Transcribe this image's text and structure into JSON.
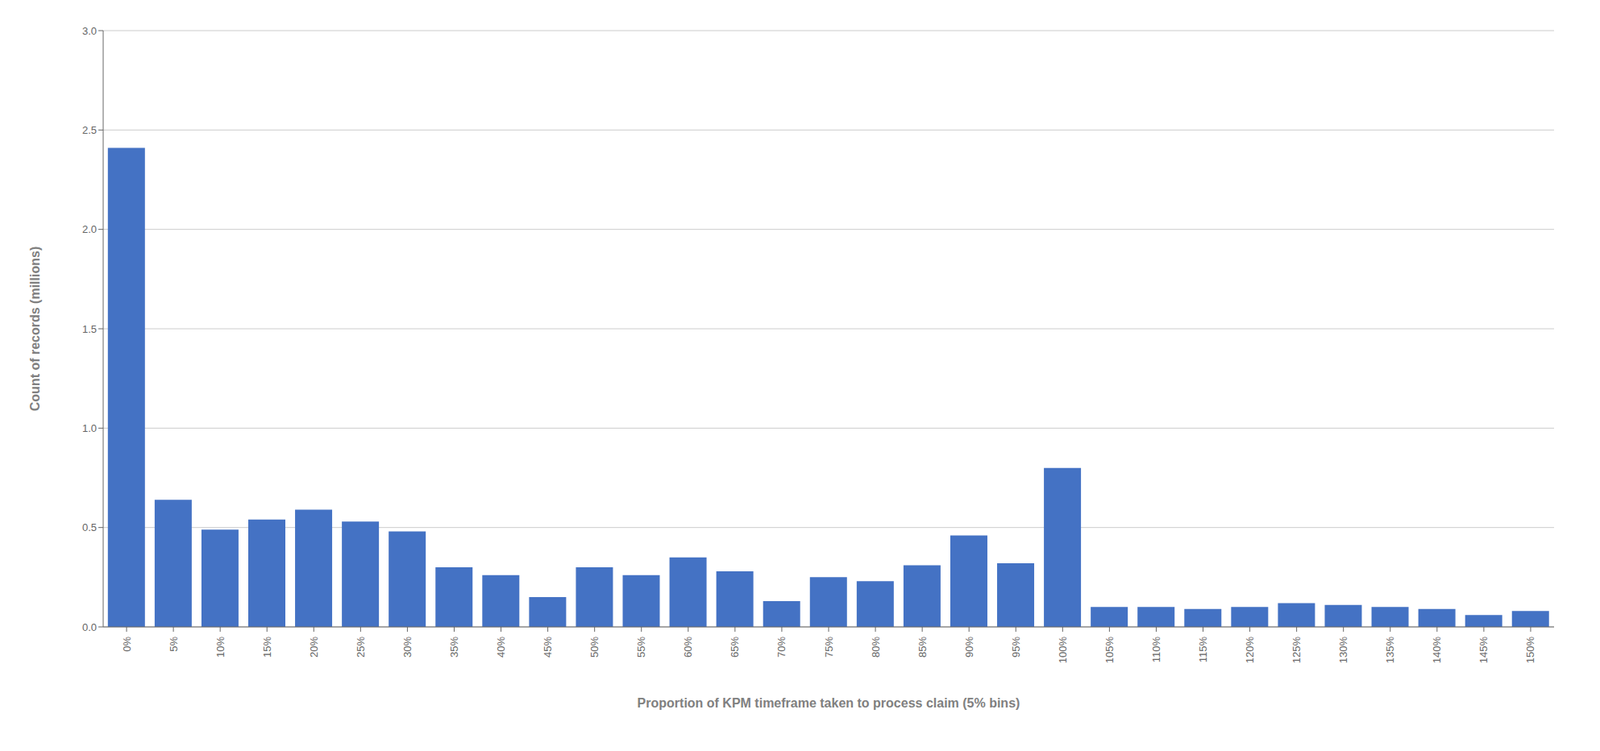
{
  "chart_data": {
    "type": "bar",
    "categories": [
      "0%",
      "5%",
      "10%",
      "15%",
      "20%",
      "25%",
      "30%",
      "35%",
      "40%",
      "45%",
      "50%",
      "55%",
      "60%",
      "65%",
      "70%",
      "75%",
      "80%",
      "85%",
      "90%",
      "95%",
      "100%",
      "105%",
      "110%",
      "115%",
      "120%",
      "125%",
      "130%",
      "135%",
      "140%",
      "145%",
      "150%"
    ],
    "values": [
      2.41,
      0.64,
      0.49,
      0.54,
      0.59,
      0.53,
      0.48,
      0.3,
      0.26,
      0.15,
      0.3,
      0.26,
      0.35,
      0.28,
      0.13,
      0.25,
      0.23,
      0.31,
      0.46,
      0.32,
      0.8,
      0.1,
      0.1,
      0.09,
      0.1,
      0.12,
      0.11,
      0.1,
      0.09,
      0.06,
      0.08
    ],
    "color": "#4472C4",
    "xlabel": "Proportion of KPM timeframe taken to process claim (5% bins)",
    "ylabel": "Count of records (millions)",
    "ylim": [
      0,
      3.0
    ],
    "yticks": [
      {
        "value": 0.0,
        "label": "0.0"
      },
      0.5,
      {
        "value": 1.0,
        "label": "1.0"
      },
      1.5,
      {
        "value": 2.0,
        "label": "2.0"
      },
      2.5,
      {
        "value": 3.0,
        "label": "3.0"
      }
    ],
    "grid": true
  }
}
